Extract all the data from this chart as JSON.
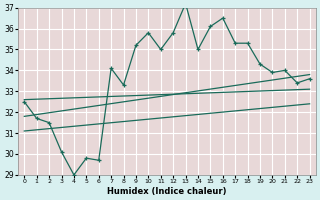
{
  "xlabel": "Humidex (Indice chaleur)",
  "bg_color": "#d8f0f0",
  "plot_bg_color": "#e8d8d8",
  "line_color": "#1a6b5a",
  "grid_color": "#ffffff",
  "xlim": [
    -0.5,
    23.5
  ],
  "ylim": [
    29,
    37
  ],
  "xtick_labels": [
    "0",
    "1",
    "2",
    "3",
    "4",
    "5",
    "6",
    "7",
    "8",
    "9",
    "10",
    "11",
    "12",
    "13",
    "14",
    "15",
    "16",
    "17",
    "18",
    "19",
    "20",
    "21",
    "22",
    "23"
  ],
  "xtick_pos": [
    0,
    1,
    2,
    3,
    4,
    5,
    6,
    7,
    8,
    9,
    10,
    11,
    12,
    13,
    14,
    15,
    16,
    17,
    18,
    19,
    20,
    21,
    22,
    23
  ],
  "yticks": [
    29,
    30,
    31,
    32,
    33,
    34,
    35,
    36,
    37
  ],
  "main_x": [
    0,
    1,
    2,
    3,
    4,
    5,
    6,
    7,
    8,
    9,
    10,
    11,
    12,
    13,
    14,
    15,
    16,
    17,
    18,
    19,
    20,
    21,
    22,
    23
  ],
  "main_y": [
    32.5,
    31.7,
    31.5,
    30.1,
    29.0,
    29.8,
    29.7,
    34.1,
    33.3,
    35.2,
    35.8,
    35.0,
    35.8,
    37.2,
    35.0,
    36.1,
    36.5,
    35.3,
    35.3,
    34.3,
    33.9,
    34.0,
    33.4,
    33.6
  ],
  "trend1_x": [
    0,
    23
  ],
  "trend1_y": [
    32.6,
    33.1
  ],
  "trend2_x": [
    0,
    23
  ],
  "trend2_y": [
    31.8,
    33.8
  ],
  "trend3_x": [
    0,
    23
  ],
  "trend3_y": [
    31.1,
    32.4
  ]
}
